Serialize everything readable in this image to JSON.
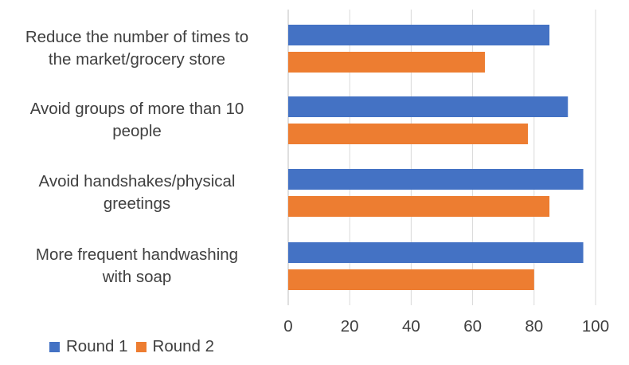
{
  "chart_data": {
    "type": "bar",
    "orientation": "horizontal",
    "categories": [
      "Reduce the number of times to the market/grocery store",
      "Avoid groups of more than 10 people",
      "Avoid handshakes/physical greetings",
      "More frequent handwashing with soap"
    ],
    "category_lines": [
      [
        "Reduce the number of times to",
        "the market/grocery store"
      ],
      [
        "Avoid groups of more than 10",
        "people"
      ],
      [
        "Avoid handshakes/physical",
        "greetings"
      ],
      [
        "More frequent handwashing",
        "with soap"
      ]
    ],
    "series": [
      {
        "name": "Round 1",
        "color": "#4472C4",
        "values": [
          85,
          91,
          96,
          96
        ]
      },
      {
        "name": "Round 2",
        "color": "#ED7D31",
        "values": [
          64,
          78,
          85,
          80
        ]
      }
    ],
    "xlim": [
      0,
      100
    ],
    "xticks": [
      0,
      20,
      40,
      60,
      80,
      100
    ],
    "grid": true,
    "legend_position": "bottom-left",
    "title": "",
    "xlabel": "",
    "ylabel": ""
  }
}
